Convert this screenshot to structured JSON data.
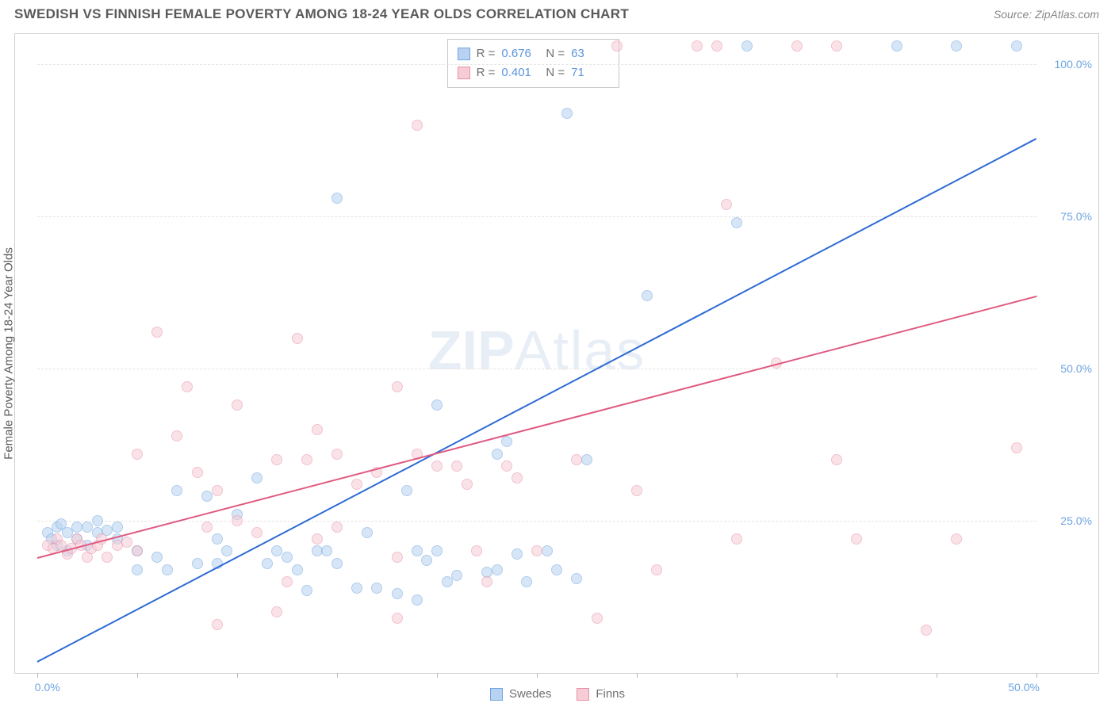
{
  "title": "SWEDISH VS FINNISH FEMALE POVERTY AMONG 18-24 YEAR OLDS CORRELATION CHART",
  "source": "Source: ZipAtlas.com",
  "ylabel": "Female Poverty Among 18-24 Year Olds",
  "watermark_a": "ZIP",
  "watermark_b": "Atlas",
  "chart": {
    "type": "scatter",
    "xlim": [
      0,
      50
    ],
    "ylim": [
      0,
      105
    ],
    "xticks": [
      0,
      5,
      10,
      15,
      20,
      25,
      30,
      35,
      40,
      45,
      50
    ],
    "xticklabels": [
      {
        "v": 0,
        "t": "0.0%"
      },
      {
        "v": 50,
        "t": "50.0%"
      }
    ],
    "yticks": [
      {
        "v": 25,
        "label": "25.0%"
      },
      {
        "v": 50,
        "label": "50.0%"
      },
      {
        "v": 75,
        "label": "75.0%"
      },
      {
        "v": 100,
        "label": "100.0%"
      }
    ],
    "background_color": "#ffffff",
    "grid_color": "#e4e4e4",
    "marker_radius": 7,
    "marker_opacity": 0.55,
    "series": [
      {
        "name": "Swedes",
        "color_fill": "#b8d3f2",
        "color_stroke": "#6fa4e0",
        "R": "0.676",
        "N": "63",
        "trend": {
          "x1": 0,
          "y1": 2,
          "x2": 50,
          "y2": 88,
          "color": "#2e6bd4"
        },
        "points": [
          [
            0.5,
            23
          ],
          [
            0.7,
            22
          ],
          [
            1,
            24
          ],
          [
            1,
            21
          ],
          [
            1.2,
            24.5
          ],
          [
            1.5,
            20
          ],
          [
            1.5,
            23
          ],
          [
            2,
            22
          ],
          [
            2,
            24
          ],
          [
            2.5,
            24
          ],
          [
            2.5,
            21
          ],
          [
            3,
            25
          ],
          [
            3,
            23
          ],
          [
            3.5,
            23.5
          ],
          [
            4,
            22
          ],
          [
            4,
            24
          ],
          [
            5,
            20
          ],
          [
            5,
            17
          ],
          [
            6,
            19
          ],
          [
            6.5,
            17
          ],
          [
            7,
            30
          ],
          [
            8,
            18
          ],
          [
            8.5,
            29
          ],
          [
            9,
            18
          ],
          [
            9,
            22
          ],
          [
            9.5,
            20
          ],
          [
            10,
            26
          ],
          [
            11,
            32
          ],
          [
            11.5,
            18
          ],
          [
            12,
            20
          ],
          [
            12.5,
            19
          ],
          [
            13,
            17
          ],
          [
            13.5,
            13.5
          ],
          [
            14,
            20
          ],
          [
            14.5,
            20
          ],
          [
            15,
            78
          ],
          [
            15,
            18
          ],
          [
            16,
            14
          ],
          [
            16.5,
            23
          ],
          [
            17,
            14
          ],
          [
            18,
            13
          ],
          [
            18.5,
            30
          ],
          [
            19,
            12
          ],
          [
            19,
            20
          ],
          [
            19.5,
            18.5
          ],
          [
            20,
            44
          ],
          [
            20,
            20
          ],
          [
            20.5,
            15
          ],
          [
            21,
            16
          ],
          [
            22.5,
            16.5
          ],
          [
            23,
            17
          ],
          [
            23,
            36
          ],
          [
            23.5,
            38
          ],
          [
            24,
            19.5
          ],
          [
            24.5,
            15
          ],
          [
            25.5,
            20
          ],
          [
            26,
            17
          ],
          [
            26.5,
            92
          ],
          [
            27,
            15.5
          ],
          [
            27.5,
            35
          ],
          [
            30.5,
            62
          ],
          [
            35,
            74
          ],
          [
            35.5,
            103
          ],
          [
            43,
            103
          ],
          [
            46,
            103
          ],
          [
            49,
            103
          ]
        ]
      },
      {
        "name": "Finns",
        "color_fill": "#f6cdd6",
        "color_stroke": "#e990a6",
        "R": "0.401",
        "N": "71",
        "trend": {
          "x1": 0,
          "y1": 19,
          "x2": 50,
          "y2": 62,
          "color": "#e05a80"
        },
        "points": [
          [
            0.5,
            21
          ],
          [
            0.8,
            20.5
          ],
          [
            1,
            22
          ],
          [
            1.2,
            21
          ],
          [
            1.5,
            19.5
          ],
          [
            1.7,
            20.5
          ],
          [
            2,
            22
          ],
          [
            2.2,
            21
          ],
          [
            2.5,
            19
          ],
          [
            2.7,
            20.5
          ],
          [
            3,
            21
          ],
          [
            3.2,
            22
          ],
          [
            3.5,
            19
          ],
          [
            4,
            21
          ],
          [
            4.5,
            21.5
          ],
          [
            5,
            36
          ],
          [
            5,
            20
          ],
          [
            6,
            56
          ],
          [
            7,
            39
          ],
          [
            7.5,
            47
          ],
          [
            8,
            33
          ],
          [
            8.5,
            24
          ],
          [
            9,
            30
          ],
          [
            9,
            8
          ],
          [
            10,
            25
          ],
          [
            10,
            44
          ],
          [
            11,
            23
          ],
          [
            12,
            10
          ],
          [
            12,
            35
          ],
          [
            12.5,
            15
          ],
          [
            13,
            55
          ],
          [
            13.5,
            35
          ],
          [
            14,
            40
          ],
          [
            14,
            22
          ],
          [
            15,
            24
          ],
          [
            15,
            36
          ],
          [
            16,
            31
          ],
          [
            17,
            33
          ],
          [
            18,
            47
          ],
          [
            18,
            19
          ],
          [
            18,
            9
          ],
          [
            19,
            90
          ],
          [
            19,
            36
          ],
          [
            20,
            34
          ],
          [
            21,
            34
          ],
          [
            21.5,
            31
          ],
          [
            22,
            20
          ],
          [
            22.5,
            15
          ],
          [
            23.5,
            34
          ],
          [
            24,
            32
          ],
          [
            25,
            20
          ],
          [
            27,
            35
          ],
          [
            28,
            9
          ],
          [
            29,
            103
          ],
          [
            30,
            30
          ],
          [
            31,
            17
          ],
          [
            33,
            103
          ],
          [
            34,
            103
          ],
          [
            34.5,
            77
          ],
          [
            35,
            22
          ],
          [
            37,
            51
          ],
          [
            38,
            103
          ],
          [
            40,
            35
          ],
          [
            40,
            103
          ],
          [
            41,
            22
          ],
          [
            44.5,
            7
          ],
          [
            46,
            22
          ],
          [
            49,
            37
          ]
        ]
      }
    ]
  },
  "bottom_legend": [
    {
      "label": "Swedes"
    },
    {
      "label": "Finns"
    }
  ]
}
